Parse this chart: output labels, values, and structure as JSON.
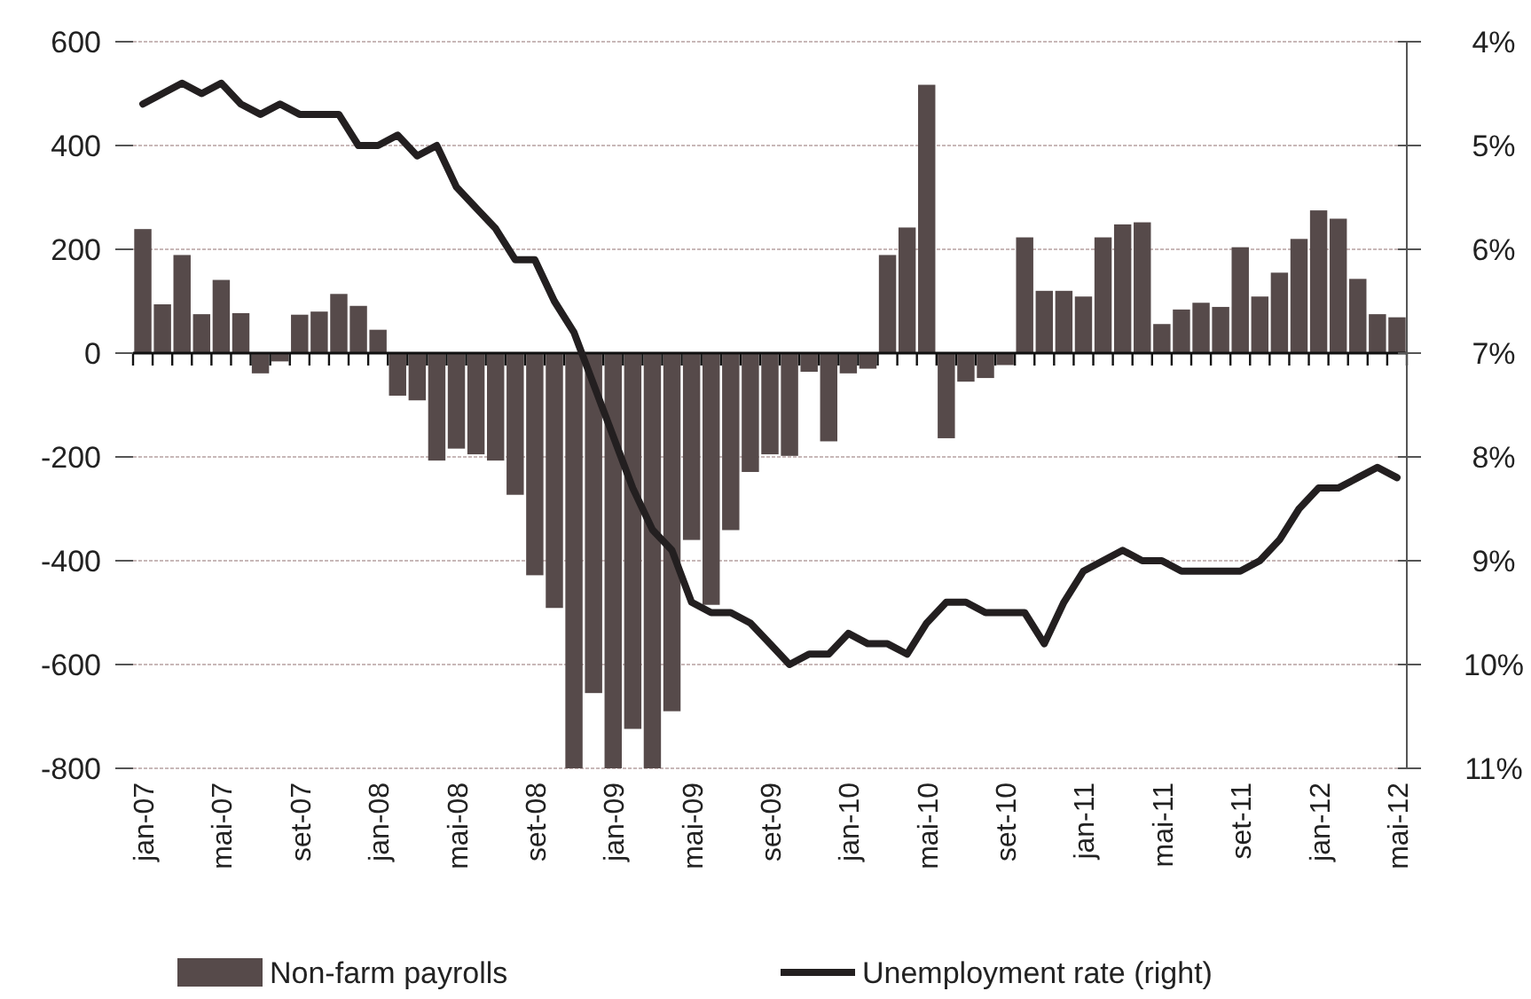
{
  "chart_data": {
    "type": "bar",
    "categories": [
      "jan-07",
      null,
      null,
      null,
      "mai-07",
      null,
      null,
      null,
      "set-07",
      null,
      null,
      null,
      "jan-08",
      null,
      null,
      null,
      "mai-08",
      null,
      null,
      null,
      "set-08",
      null,
      null,
      null,
      "jan-09",
      null,
      null,
      null,
      "mai-09",
      null,
      null,
      null,
      "set-09",
      null,
      null,
      null,
      "jan-10",
      null,
      null,
      null,
      "mai-10",
      null,
      null,
      null,
      "set-10",
      null,
      null,
      null,
      "jan-11",
      null,
      null,
      null,
      "mai-11",
      null,
      null,
      null,
      "set-11",
      null,
      null,
      null,
      "jan-12",
      null,
      null,
      null,
      "mai-12"
    ],
    "series": [
      {
        "name": "Non-farm payrolls",
        "color": "#564a4a",
        "values": [
          239,
          94,
          189,
          75,
          141,
          77,
          -39,
          -16,
          74,
          80,
          114,
          91,
          45,
          -82,
          -91,
          -207,
          -184,
          -195,
          -207,
          -273,
          -428,
          -491,
          -800,
          -655,
          -800,
          -724,
          -800,
          -690,
          -360,
          -485,
          -341,
          -229,
          -195,
          -198,
          -36,
          -170,
          -39,
          -30,
          189,
          242,
          517,
          -164,
          -55,
          -48,
          -23,
          223,
          120,
          120,
          109,
          223,
          248,
          252,
          56,
          84,
          97,
          89,
          204,
          109,
          155,
          220,
          275,
          259,
          143,
          75,
          69
        ]
      },
      {
        "name": "Unemployment rate (right)",
        "type": "line",
        "axis": "y2",
        "color": "#231f20",
        "values": [
          4.6,
          4.5,
          4.4,
          4.5,
          4.4,
          4.6,
          4.7,
          4.6,
          4.7,
          4.7,
          4.7,
          5.0,
          5.0,
          4.9,
          5.1,
          5.0,
          5.4,
          5.6,
          5.8,
          6.1,
          6.1,
          6.5,
          6.8,
          7.3,
          7.8,
          8.3,
          8.7,
          8.9,
          9.4,
          9.5,
          9.5,
          9.6,
          9.8,
          10.0,
          9.9,
          9.9,
          9.7,
          9.8,
          9.8,
          9.9,
          9.6,
          9.4,
          9.4,
          9.5,
          9.5,
          9.5,
          9.8,
          9.4,
          9.1,
          9.0,
          8.9,
          9.0,
          9.0,
          9.1,
          9.1,
          9.1,
          9.1,
          9.0,
          8.8,
          8.5,
          8.3,
          8.3,
          8.2,
          8.1,
          8.2
        ]
      }
    ],
    "ylim": [
      -800,
      600
    ],
    "yticks": [
      -800,
      -600,
      -400,
      -200,
      0,
      200,
      400,
      600
    ],
    "y2lim": [
      11,
      4
    ],
    "y2ticks": [
      {
        "value": 4,
        "label": "4%"
      },
      {
        "value": 5,
        "label": "5%"
      },
      {
        "value": 6,
        "label": "6%"
      },
      {
        "value": 7,
        "label": "7%"
      },
      {
        "value": 8,
        "label": "8%"
      },
      {
        "value": 9,
        "label": "9%"
      },
      {
        "value": 10,
        "label": "10%"
      },
      {
        "value": 11,
        "label": "11%"
      }
    ],
    "grid": "y",
    "legend": "bottom",
    "line_style": "solid",
    "marker": "none"
  }
}
